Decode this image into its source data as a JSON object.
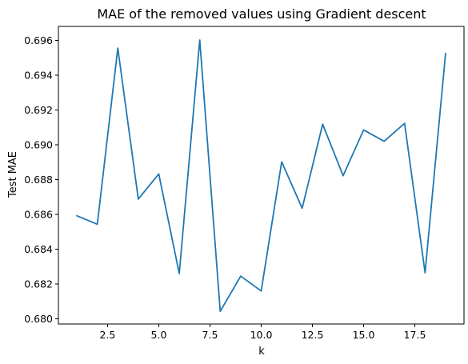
{
  "chart_data": {
    "type": "line",
    "title": "MAE of the removed values using Gradient descent",
    "xlabel": "k",
    "ylabel": "Test MAE",
    "xlim": [
      0.1,
      19.9
    ],
    "ylim": [
      0.6797,
      0.6968
    ],
    "xticks": [
      2.5,
      5.0,
      7.5,
      10.0,
      12.5,
      15.0,
      17.5
    ],
    "xtick_labels": [
      "2.5",
      "5.0",
      "7.5",
      "10.0",
      "12.5",
      "15.0",
      "17.5"
    ],
    "yticks": [
      0.68,
      0.682,
      0.684,
      0.686,
      0.688,
      0.69,
      0.692,
      0.694,
      0.696
    ],
    "ytick_labels": [
      "0.680",
      "0.682",
      "0.684",
      "0.686",
      "0.688",
      "0.690",
      "0.692",
      "0.694",
      "0.696"
    ],
    "grid": false,
    "legend": "none",
    "series": [
      {
        "color": "#1f77b4",
        "x": [
          1,
          2,
          3,
          4,
          5,
          6,
          7,
          8,
          9,
          10,
          11,
          12,
          13,
          14,
          15,
          16,
          17,
          18,
          19
        ],
        "values": [
          0.68592,
          0.68543,
          0.69555,
          0.68688,
          0.68832,
          0.6826,
          0.69602,
          0.68043,
          0.68245,
          0.6816,
          0.68902,
          0.68635,
          0.69118,
          0.68822,
          0.69085,
          0.6902,
          0.69123,
          0.68264,
          0.69525
        ]
      }
    ]
  }
}
